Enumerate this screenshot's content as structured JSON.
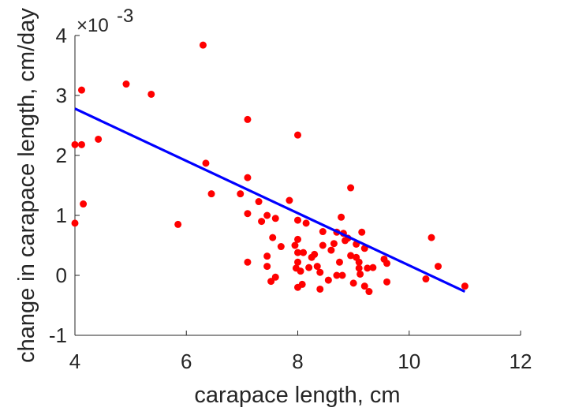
{
  "chart_data": {
    "type": "scatter",
    "title": "",
    "xlabel": "carapace length, cm",
    "ylabel": "change in carapace length, cm/day",
    "xlim": [
      4,
      12
    ],
    "ylim": [
      -1,
      4
    ],
    "y_multiplier_label": "×10",
    "y_multiplier_exponent": "-3",
    "x_ticks": [
      4,
      6,
      8,
      10,
      12
    ],
    "y_ticks": [
      -1,
      0,
      1,
      2,
      3,
      4
    ],
    "grid": false,
    "legend": "none",
    "colors": {
      "points": "#ff0000",
      "fit_line": "#0000ff",
      "axes": "#262626"
    },
    "series": [
      {
        "kind": "points",
        "points": [
          [
            4.0,
            0.87
          ],
          [
            4.0,
            2.18
          ],
          [
            4.12,
            2.18
          ],
          [
            4.12,
            3.09
          ],
          [
            4.15,
            1.19
          ],
          [
            4.42,
            2.27
          ],
          [
            4.92,
            3.19
          ],
          [
            5.37,
            3.02
          ],
          [
            5.85,
            0.85
          ],
          [
            6.3,
            3.84
          ],
          [
            6.35,
            1.87
          ],
          [
            6.45,
            1.36
          ],
          [
            6.97,
            1.36
          ],
          [
            7.1,
            2.6
          ],
          [
            7.1,
            1.63
          ],
          [
            7.1,
            1.03
          ],
          [
            7.1,
            0.22
          ],
          [
            7.3,
            1.23
          ],
          [
            7.35,
            0.9
          ],
          [
            7.45,
            1.0
          ],
          [
            7.45,
            0.32
          ],
          [
            7.45,
            0.15
          ],
          [
            7.52,
            -0.1
          ],
          [
            7.55,
            0.63
          ],
          [
            7.6,
            0.95
          ],
          [
            7.6,
            -0.03
          ],
          [
            7.7,
            0.48
          ],
          [
            7.85,
            1.25
          ],
          [
            7.95,
            0.5
          ],
          [
            7.97,
            0.12
          ],
          [
            8.0,
            2.34
          ],
          [
            8.0,
            0.92
          ],
          [
            8.0,
            0.6
          ],
          [
            8.0,
            0.38
          ],
          [
            8.0,
            0.22
          ],
          [
            8.0,
            -0.2
          ],
          [
            8.05,
            0.07
          ],
          [
            8.08,
            -0.15
          ],
          [
            8.1,
            0.38
          ],
          [
            8.15,
            0.87
          ],
          [
            8.2,
            0.13
          ],
          [
            8.25,
            0.3
          ],
          [
            8.3,
            0.35
          ],
          [
            8.35,
            0.15
          ],
          [
            8.4,
            0.05
          ],
          [
            8.4,
            -0.23
          ],
          [
            8.45,
            0.73
          ],
          [
            8.45,
            0.5
          ],
          [
            8.55,
            -0.08
          ],
          [
            8.6,
            0.42
          ],
          [
            8.65,
            0.53
          ],
          [
            8.7,
            0.72
          ],
          [
            8.7,
            0.0
          ],
          [
            8.75,
            0.22
          ],
          [
            8.78,
            0.97
          ],
          [
            8.8,
            0.0
          ],
          [
            8.82,
            0.7
          ],
          [
            8.85,
            0.58
          ],
          [
            8.9,
            0.62
          ],
          [
            8.95,
            1.46
          ],
          [
            8.95,
            0.33
          ],
          [
            9.0,
            -0.13
          ],
          [
            9.05,
            0.3
          ],
          [
            9.05,
            0.52
          ],
          [
            9.1,
            0.22
          ],
          [
            9.1,
            0.12
          ],
          [
            9.12,
            0.02
          ],
          [
            9.15,
            0.72
          ],
          [
            9.2,
            0.45
          ],
          [
            9.2,
            -0.18
          ],
          [
            9.25,
            0.12
          ],
          [
            9.28,
            -0.27
          ],
          [
            9.35,
            0.13
          ],
          [
            9.55,
            0.27
          ],
          [
            9.6,
            0.2
          ],
          [
            9.6,
            -0.11
          ],
          [
            10.3,
            -0.06
          ],
          [
            10.4,
            0.63
          ],
          [
            10.52,
            0.15
          ],
          [
            11.0,
            -0.18
          ]
        ]
      },
      {
        "kind": "fit_line",
        "points": [
          [
            4.0,
            2.78
          ],
          [
            11.0,
            -0.27
          ]
        ]
      }
    ]
  }
}
